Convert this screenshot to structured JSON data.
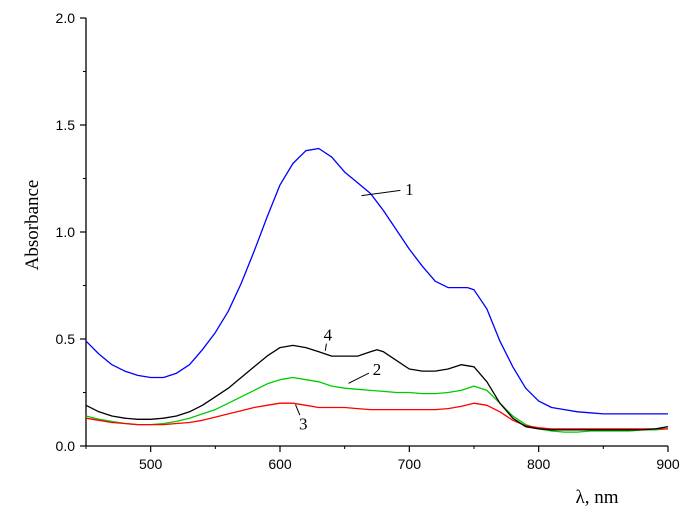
{
  "chart_data": {
    "type": "line",
    "title": "",
    "xlabel": "λ, nm",
    "ylabel": "Absorbance",
    "xlim": [
      450,
      900
    ],
    "ylim": [
      0.0,
      2.0
    ],
    "xticks": [
      500,
      600,
      700,
      800,
      900
    ],
    "xtick_labels": [
      "500",
      "600",
      "700",
      "800",
      "900"
    ],
    "yticks": [
      0.0,
      0.5,
      1.0,
      1.5,
      2.0
    ],
    "ytick_labels": [
      "0.0",
      "0.5",
      "1.0",
      "1.5",
      "2.0"
    ],
    "grid": false,
    "series": [
      {
        "name": "1",
        "color": "#0000ff",
        "label_at": [
          663,
          1.17
        ],
        "label_text_at": [
          700,
          1.2
        ],
        "x": [
          450,
          460,
          470,
          480,
          490,
          500,
          510,
          520,
          530,
          540,
          550,
          560,
          570,
          580,
          590,
          600,
          610,
          620,
          630,
          640,
          650,
          660,
          670,
          680,
          690,
          700,
          710,
          720,
          730,
          740,
          745,
          750,
          760,
          770,
          780,
          790,
          800,
          810,
          820,
          830,
          840,
          850,
          860,
          870,
          880,
          890,
          900
        ],
        "y": [
          0.49,
          0.43,
          0.38,
          0.35,
          0.33,
          0.32,
          0.32,
          0.34,
          0.38,
          0.45,
          0.53,
          0.63,
          0.76,
          0.91,
          1.07,
          1.22,
          1.32,
          1.38,
          1.39,
          1.35,
          1.28,
          1.23,
          1.18,
          1.1,
          1.01,
          0.92,
          0.84,
          0.77,
          0.74,
          0.74,
          0.74,
          0.73,
          0.64,
          0.49,
          0.37,
          0.27,
          0.21,
          0.18,
          0.17,
          0.16,
          0.155,
          0.15,
          0.15,
          0.15,
          0.15,
          0.15,
          0.15
        ]
      },
      {
        "name": "2",
        "color": "#00cc00",
        "label_at": [
          653,
          0.293
        ],
        "label_text_at": [
          675,
          0.36
        ],
        "x": [
          450,
          460,
          470,
          480,
          490,
          500,
          510,
          520,
          530,
          540,
          550,
          560,
          570,
          580,
          590,
          600,
          610,
          620,
          630,
          640,
          650,
          660,
          670,
          680,
          690,
          700,
          710,
          720,
          730,
          740,
          750,
          760,
          770,
          780,
          790,
          800,
          810,
          820,
          830,
          840,
          850,
          860,
          870,
          880,
          890,
          900
        ],
        "y": [
          0.14,
          0.125,
          0.115,
          0.105,
          0.1,
          0.1,
          0.105,
          0.115,
          0.13,
          0.15,
          0.17,
          0.2,
          0.23,
          0.26,
          0.29,
          0.31,
          0.32,
          0.31,
          0.3,
          0.28,
          0.27,
          0.265,
          0.26,
          0.255,
          0.25,
          0.25,
          0.245,
          0.245,
          0.25,
          0.26,
          0.28,
          0.26,
          0.2,
          0.14,
          0.1,
          0.08,
          0.07,
          0.065,
          0.065,
          0.07,
          0.07,
          0.07,
          0.07,
          0.075,
          0.075,
          0.08
        ]
      },
      {
        "name": "3",
        "color": "#ff0000",
        "label_at": [
          612,
          0.193
        ],
        "label_text_at": [
          618,
          0.105
        ],
        "x": [
          450,
          460,
          470,
          480,
          490,
          500,
          510,
          520,
          530,
          540,
          550,
          560,
          570,
          580,
          590,
          600,
          610,
          620,
          630,
          640,
          650,
          660,
          670,
          680,
          690,
          700,
          710,
          720,
          730,
          740,
          750,
          760,
          770,
          780,
          790,
          800,
          810,
          820,
          830,
          840,
          850,
          860,
          870,
          880,
          890,
          900
        ],
        "y": [
          0.13,
          0.12,
          0.11,
          0.105,
          0.1,
          0.1,
          0.1,
          0.105,
          0.11,
          0.12,
          0.135,
          0.15,
          0.165,
          0.18,
          0.19,
          0.2,
          0.2,
          0.19,
          0.18,
          0.18,
          0.18,
          0.175,
          0.17,
          0.17,
          0.17,
          0.17,
          0.17,
          0.17,
          0.175,
          0.185,
          0.2,
          0.19,
          0.16,
          0.12,
          0.095,
          0.085,
          0.08,
          0.08,
          0.08,
          0.08,
          0.08,
          0.08,
          0.08,
          0.08,
          0.08,
          0.08
        ]
      },
      {
        "name": "4",
        "color": "#000000",
        "label_at": [
          635,
          0.445
        ],
        "label_text_at": [
          637,
          0.52
        ],
        "x": [
          450,
          460,
          470,
          480,
          490,
          500,
          510,
          520,
          530,
          540,
          550,
          560,
          570,
          580,
          590,
          600,
          610,
          620,
          630,
          640,
          650,
          660,
          670,
          675,
          680,
          690,
          700,
          710,
          720,
          730,
          740,
          750,
          760,
          770,
          780,
          790,
          800,
          810,
          820,
          830,
          840,
          850,
          860,
          870,
          880,
          890,
          900
        ],
        "y": [
          0.19,
          0.16,
          0.14,
          0.13,
          0.125,
          0.125,
          0.13,
          0.14,
          0.16,
          0.19,
          0.23,
          0.27,
          0.32,
          0.37,
          0.42,
          0.46,
          0.47,
          0.46,
          0.44,
          0.42,
          0.42,
          0.42,
          0.44,
          0.45,
          0.44,
          0.4,
          0.36,
          0.35,
          0.35,
          0.36,
          0.38,
          0.37,
          0.3,
          0.2,
          0.13,
          0.09,
          0.08,
          0.075,
          0.075,
          0.075,
          0.075,
          0.075,
          0.075,
          0.075,
          0.075,
          0.08,
          0.09
        ]
      }
    ]
  }
}
